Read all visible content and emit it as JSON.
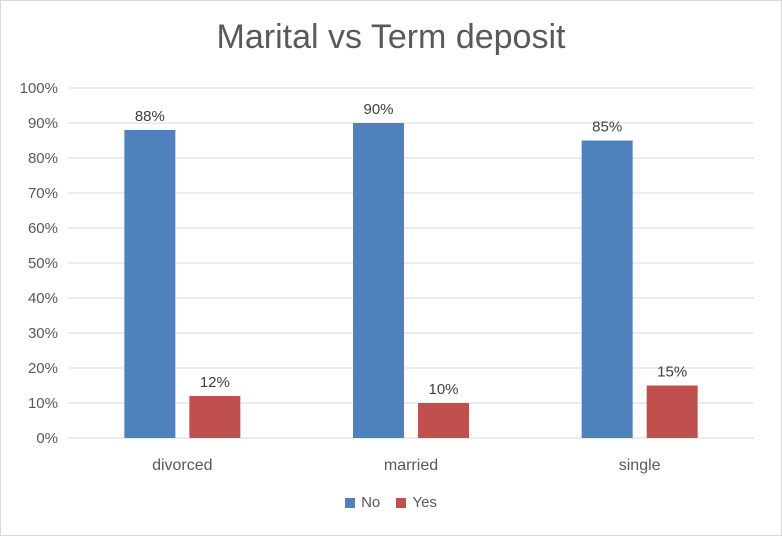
{
  "chart_data": {
    "type": "bar",
    "title": "Marital vs Term deposit",
    "categories": [
      "divorced",
      "married",
      "single"
    ],
    "series": [
      {
        "name": "No",
        "color": "#4f81bd",
        "values": [
          88,
          90,
          85
        ],
        "labels": [
          "88%",
          "90%",
          "85%"
        ]
      },
      {
        "name": "Yes",
        "color": "#c0504d",
        "values": [
          12,
          10,
          15
        ],
        "labels": [
          "12%",
          "10%",
          "15%"
        ]
      }
    ],
    "ylim": [
      0,
      100
    ],
    "y_ticks": [
      0,
      10,
      20,
      30,
      40,
      50,
      60,
      70,
      80,
      90,
      100
    ],
    "y_tick_labels": [
      "0%",
      "10%",
      "20%",
      "30%",
      "40%",
      "50%",
      "60%",
      "70%",
      "80%",
      "90%",
      "100%"
    ],
    "xlabel": "",
    "ylabel": "",
    "grid": true,
    "legend_position": "bottom"
  }
}
